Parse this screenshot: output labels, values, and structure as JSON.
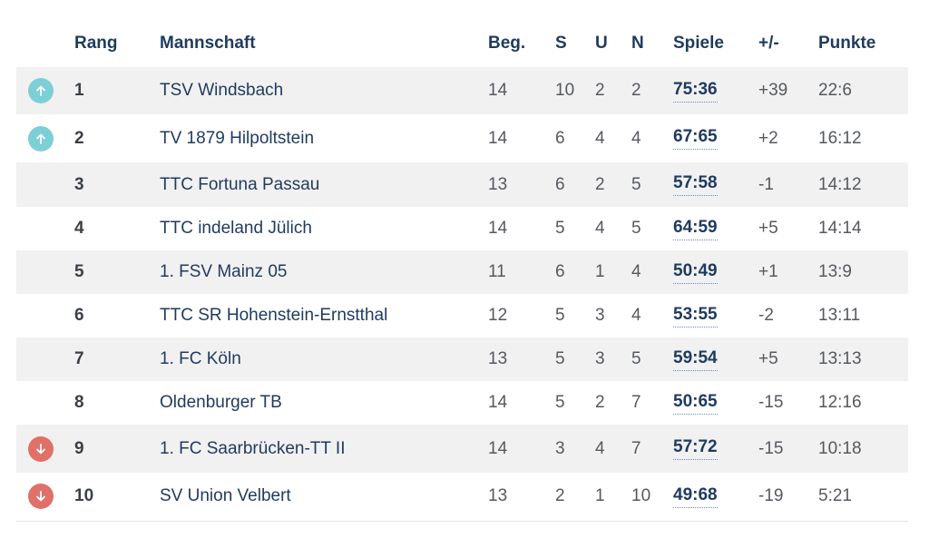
{
  "colors": {
    "up": "#7dcfd6",
    "down": "#e07068",
    "row_shade": "#f1f1f1",
    "text": "#1f3a5f"
  },
  "headers": {
    "rang": "Rang",
    "mannschaft": "Mannschaft",
    "beg": "Beg.",
    "s": "S",
    "u": "U",
    "n": "N",
    "spiele": "Spiele",
    "diff": "+/-",
    "punkte": "Punkte"
  },
  "rows": [
    {
      "icon": "arrow-up-icon",
      "rank": "1",
      "team": "TSV Windsbach",
      "beg": "14",
      "s": "10",
      "u": "2",
      "n": "2",
      "spiele": "75:36",
      "diff": "+39",
      "punkte": "22:6"
    },
    {
      "icon": "arrow-up-icon",
      "rank": "2",
      "team": "TV 1879 Hilpoltstein",
      "beg": "14",
      "s": "6",
      "u": "4",
      "n": "4",
      "spiele": "67:65",
      "diff": "+2",
      "punkte": "16:12"
    },
    {
      "icon": "",
      "rank": "3",
      "team": "TTC Fortuna Passau",
      "beg": "13",
      "s": "6",
      "u": "2",
      "n": "5",
      "spiele": "57:58",
      "diff": "-1",
      "punkte": "14:12"
    },
    {
      "icon": "",
      "rank": "4",
      "team": "TTC indeland Jülich",
      "beg": "14",
      "s": "5",
      "u": "4",
      "n": "5",
      "spiele": "64:59",
      "diff": "+5",
      "punkte": "14:14"
    },
    {
      "icon": "",
      "rank": "5",
      "team": "1. FSV Mainz 05",
      "beg": "11",
      "s": "6",
      "u": "1",
      "n": "4",
      "spiele": "50:49",
      "diff": "+1",
      "punkte": "13:9"
    },
    {
      "icon": "",
      "rank": "6",
      "team": "TTC SR Hohenstein-Ernstthal",
      "beg": "12",
      "s": "5",
      "u": "3",
      "n": "4",
      "spiele": "53:55",
      "diff": "-2",
      "punkte": "13:11"
    },
    {
      "icon": "",
      "rank": "7",
      "team": "1. FC Köln",
      "beg": "13",
      "s": "5",
      "u": "3",
      "n": "5",
      "spiele": "59:54",
      "diff": "+5",
      "punkte": "13:13"
    },
    {
      "icon": "",
      "rank": "8",
      "team": "Oldenburger TB",
      "beg": "14",
      "s": "5",
      "u": "2",
      "n": "7",
      "spiele": "50:65",
      "diff": "-15",
      "punkte": "12:16"
    },
    {
      "icon": "arrow-down-icon",
      "rank": "9",
      "team": "1. FC Saarbrücken-TT II",
      "beg": "14",
      "s": "3",
      "u": "4",
      "n": "7",
      "spiele": "57:72",
      "diff": "-15",
      "punkte": "10:18"
    },
    {
      "icon": "arrow-down-icon",
      "rank": "10",
      "team": "SV Union Velbert",
      "beg": "13",
      "s": "2",
      "u": "1",
      "n": "10",
      "spiele": "49:68",
      "diff": "-19",
      "punkte": "5:21"
    }
  ]
}
